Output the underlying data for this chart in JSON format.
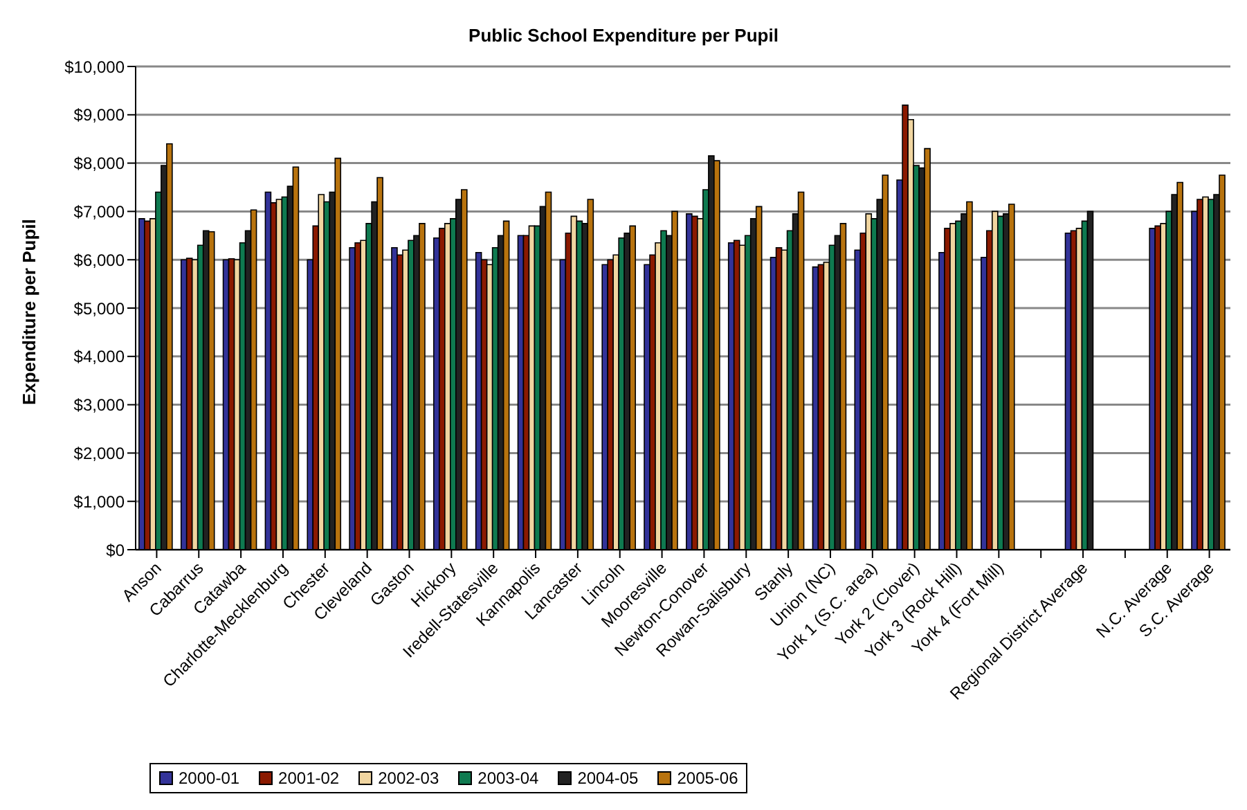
{
  "chart_data": {
    "type": "bar",
    "title": "Public School Expenditure per Pupil",
    "ylabel": "Expenditure per Pupil",
    "categories": [
      "Anson",
      "Cabarrus",
      "Catawba",
      "Charlotte-Mecklenburg",
      "Chester",
      "Cleveland",
      "Gaston",
      "Hickory",
      "Iredell-Statesville",
      "Kannapolis",
      "Lancaster",
      "Lincoln",
      "Mooresville",
      "Newton-Conover",
      "Rowan-Salisbury",
      "Stanly",
      "Union (NC)",
      "York 1 (S.C. area)",
      "York 2 (Clover)",
      "York 3 (Rock Hill)",
      "York 4 (Fort Mill)",
      null,
      "Regional District Average",
      null,
      "N.C. Average",
      "S.C. Average"
    ],
    "series": [
      {
        "name": "2000-01",
        "color": "#333399",
        "values": [
          6850,
          6000,
          6000,
          7400,
          6000,
          6250,
          6250,
          6450,
          6150,
          6500,
          6000,
          5900,
          5900,
          6950,
          6350,
          6050,
          5850,
          6200,
          7650,
          6150,
          6050,
          null,
          6550,
          null,
          6650,
          7000
        ]
      },
      {
        "name": "2001-02",
        "color": "#8b1a00",
        "values": [
          6800,
          6030,
          6020,
          7180,
          6700,
          6350,
          6100,
          6650,
          6000,
          6500,
          6550,
          6000,
          6100,
          6900,
          6400,
          6250,
          5900,
          6550,
          9200,
          6650,
          6600,
          null,
          6600,
          null,
          6700,
          7250
        ]
      },
      {
        "name": "2002-03",
        "color": "#f0d5a0",
        "values": [
          6850,
          6000,
          6000,
          7250,
          7350,
          6400,
          6200,
          6750,
          5900,
          6700,
          6900,
          6100,
          6350,
          6850,
          6300,
          6200,
          5950,
          6950,
          8900,
          6750,
          7000,
          null,
          6650,
          null,
          6750,
          7300
        ]
      },
      {
        "name": "2003-04",
        "color": "#0f7a50",
        "values": [
          7400,
          6300,
          6350,
          7300,
          7200,
          6750,
          6400,
          6850,
          6250,
          6700,
          6800,
          6450,
          6600,
          7450,
          6500,
          6600,
          6300,
          6850,
          7950,
          6800,
          6900,
          null,
          6800,
          null,
          7000,
          7250
        ]
      },
      {
        "name": "2004-05",
        "color": "#222222",
        "values": [
          7950,
          6600,
          6600,
          7520,
          7400,
          7200,
          6500,
          7250,
          6500,
          7100,
          6750,
          6550,
          6500,
          8150,
          6850,
          6950,
          6500,
          7250,
          7900,
          6950,
          6950,
          null,
          7000,
          null,
          7350,
          7350
        ]
      },
      {
        "name": "2005-06",
        "color": "#b8730e",
        "values": [
          8400,
          6580,
          7030,
          7920,
          8100,
          7700,
          6750,
          7450,
          6800,
          7400,
          7250,
          6700,
          7000,
          8050,
          7100,
          7400,
          6750,
          7750,
          8300,
          7200,
          7150,
          null,
          null,
          null,
          7600,
          7750
        ]
      }
    ],
    "ylim": [
      0,
      10000
    ],
    "yticks": [
      {
        "value": 0,
        "label": "$0"
      },
      {
        "value": 1000,
        "label": "$1,000"
      },
      {
        "value": 2000,
        "label": "$2,000"
      },
      {
        "value": 3000,
        "label": "$3,000"
      },
      {
        "value": 4000,
        "label": "$4,000"
      },
      {
        "value": 5000,
        "label": "$5,000"
      },
      {
        "value": 6000,
        "label": "$6,000"
      },
      {
        "value": 7000,
        "label": "$7,000"
      },
      {
        "value": 8000,
        "label": "$8,000"
      },
      {
        "value": 9000,
        "label": "$9,000"
      },
      {
        "value": 10000,
        "label": "$10,000"
      }
    ],
    "grid": "y",
    "legend": "bottom"
  }
}
